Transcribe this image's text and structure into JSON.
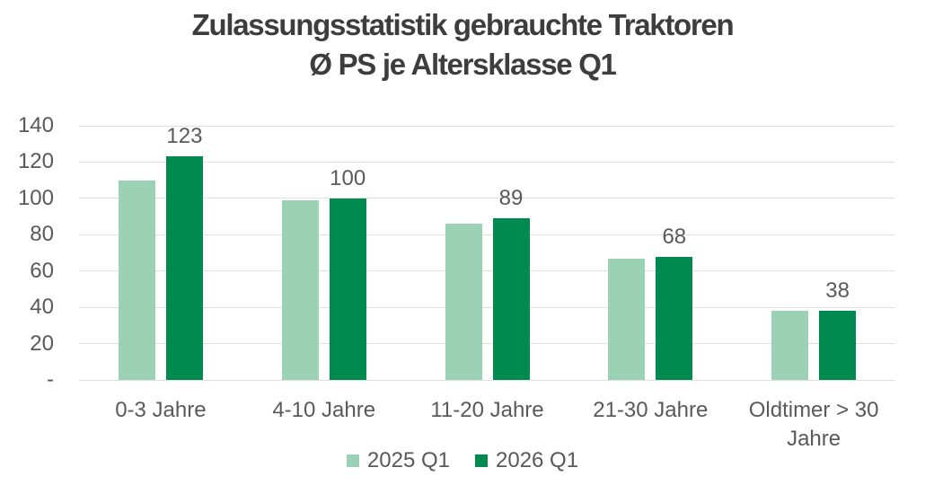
{
  "chart_data": {
    "type": "bar",
    "title_line1": "Zulassungsstatistik gebrauchte Traktoren",
    "title_line2": "Ø PS je Altersklasse Q1",
    "categories": [
      "0-3 Jahre",
      "4-10 Jahre",
      "11-20 Jahre",
      "21-30 Jahre",
      "Oldtimer > 30 Jahre"
    ],
    "series": [
      {
        "name": "2025 Q1",
        "color": "#9BD2B5",
        "values": [
          110,
          99,
          86,
          67,
          38
        ],
        "show_data_labels": false
      },
      {
        "name": "2026 Q1",
        "color": "#008A50",
        "values": [
          123,
          100,
          89,
          68,
          38
        ],
        "show_data_labels": true
      }
    ],
    "data_labels": [
      123,
      100,
      89,
      68,
      38
    ],
    "ylim": [
      0,
      140
    ],
    "ytick_step": 20,
    "ytick_labels": [
      "-",
      "20",
      "40",
      "60",
      "80",
      "100",
      "120",
      "140"
    ],
    "grid": true,
    "legend_position": "bottom",
    "colors": {
      "title_text": "#3d3d3d",
      "axis_text": "#595959",
      "data_label_text": "#595959",
      "gridline": "#e0e0e0",
      "background": "#ffffff"
    }
  }
}
